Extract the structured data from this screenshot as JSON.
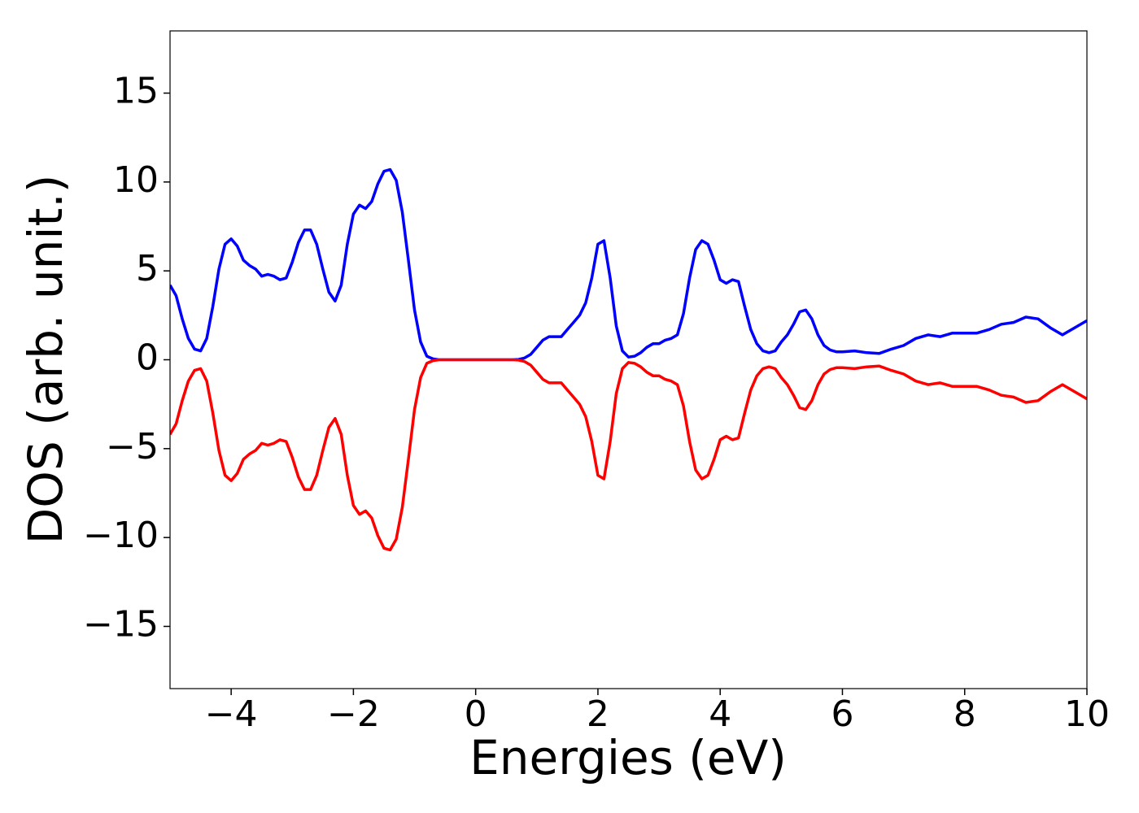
{
  "chart_data": {
    "type": "line",
    "xlabel": "Energies (eV)",
    "ylabel": "DOS (arb. unit.)",
    "x": [
      -5,
      -4.9,
      -4.8,
      -4.7,
      -4.6,
      -4.5,
      -4.4,
      -4.3,
      -4.2,
      -4.1,
      -4,
      -3.9,
      -3.8,
      -3.7,
      -3.6,
      -3.5,
      -3.4,
      -3.3,
      -3.2,
      -3.1,
      -3,
      -2.9,
      -2.8,
      -2.7,
      -2.6,
      -2.5,
      -2.4,
      -2.3,
      -2.2,
      -2.1,
      -2,
      -1.9,
      -1.8,
      -1.7,
      -1.6,
      -1.5,
      -1.4,
      -1.3,
      -1.2,
      -1.1,
      -1,
      -0.9,
      -0.8,
      -0.7,
      -0.6,
      -0.3,
      0,
      0.3,
      0.6,
      0.7,
      0.8,
      0.9,
      1,
      1.1,
      1.2,
      1.3,
      1.4,
      1.5,
      1.6,
      1.7,
      1.8,
      1.9,
      2,
      2.1,
      2.2,
      2.3,
      2.4,
      2.5,
      2.6,
      2.7,
      2.8,
      2.9,
      3,
      3.1,
      3.2,
      3.3,
      3.4,
      3.5,
      3.6,
      3.7,
      3.8,
      3.9,
      4,
      4.1,
      4.2,
      4.3,
      4.4,
      4.5,
      4.6,
      4.7,
      4.8,
      4.9,
      5,
      5.1,
      5.2,
      5.3,
      5.4,
      5.5,
      5.6,
      5.7,
      5.8,
      5.9,
      6,
      6.2,
      6.4,
      6.6,
      6.8,
      7,
      7.2,
      7.4,
      7.6,
      7.8,
      8,
      8.2,
      8.4,
      8.6,
      8.8,
      9,
      9.2,
      9.4,
      9.6,
      9.8,
      10
    ],
    "series": [
      {
        "color": "#0000ff",
        "values": [
          4.2,
          3.6,
          2.3,
          1.2,
          0.6,
          0.5,
          1.2,
          3.0,
          5.1,
          6.5,
          6.8,
          6.4,
          5.6,
          5.3,
          5.1,
          4.7,
          4.8,
          4.7,
          4.5,
          4.6,
          5.5,
          6.6,
          7.3,
          7.3,
          6.5,
          5.1,
          3.8,
          3.3,
          4.2,
          6.5,
          8.2,
          8.7,
          8.5,
          8.9,
          9.9,
          10.6,
          10.7,
          10.1,
          8.3,
          5.6,
          2.8,
          1.0,
          0.2,
          0.05,
          0,
          0,
          0,
          0,
          0,
          0.02,
          0.1,
          0.3,
          0.7,
          1.1,
          1.3,
          1.3,
          1.3,
          1.7,
          2.1,
          2.5,
          3.2,
          4.6,
          6.5,
          6.7,
          4.6,
          1.9,
          0.5,
          0.15,
          0.2,
          0.4,
          0.7,
          0.9,
          0.9,
          1.1,
          1.2,
          1.4,
          2.6,
          4.6,
          6.2,
          6.7,
          6.5,
          5.6,
          4.5,
          4.3,
          4.5,
          4.4,
          3.0,
          1.7,
          0.9,
          0.5,
          0.4,
          0.5,
          1.0,
          1.4,
          2.0,
          2.7,
          2.8,
          2.3,
          1.4,
          0.8,
          0.55,
          0.45,
          0.45,
          0.5,
          0.4,
          0.35,
          0.6,
          0.8,
          1.2,
          1.4,
          1.3,
          1.5,
          1.5,
          1.5,
          1.7,
          2.0,
          2.1,
          2.4,
          2.3,
          1.8,
          1.4,
          1.8,
          2.2
        ]
      },
      {
        "color": "#ff0000",
        "values": [
          -4.2,
          -3.6,
          -2.3,
          -1.2,
          -0.6,
          -0.5,
          -1.2,
          -3.0,
          -5.1,
          -6.5,
          -6.8,
          -6.4,
          -5.6,
          -5.3,
          -5.1,
          -4.7,
          -4.8,
          -4.7,
          -4.5,
          -4.6,
          -5.5,
          -6.6,
          -7.3,
          -7.3,
          -6.5,
          -5.1,
          -3.8,
          -3.3,
          -4.2,
          -6.5,
          -8.2,
          -8.7,
          -8.5,
          -8.9,
          -9.9,
          -10.6,
          -10.7,
          -10.1,
          -8.3,
          -5.6,
          -2.8,
          -1.0,
          -0.2,
          -0.05,
          0,
          0,
          0,
          0,
          0,
          -0.02,
          -0.1,
          -0.3,
          -0.7,
          -1.1,
          -1.3,
          -1.3,
          -1.3,
          -1.7,
          -2.1,
          -2.5,
          -3.2,
          -4.6,
          -6.5,
          -6.7,
          -4.6,
          -1.9,
          -0.5,
          -0.15,
          -0.2,
          -0.4,
          -0.7,
          -0.9,
          -0.9,
          -1.1,
          -1.2,
          -1.4,
          -2.6,
          -4.6,
          -6.2,
          -6.7,
          -6.5,
          -5.6,
          -4.5,
          -4.3,
          -4.5,
          -4.4,
          -3.0,
          -1.7,
          -0.9,
          -0.5,
          -0.4,
          -0.5,
          -1.0,
          -1.4,
          -2.0,
          -2.7,
          -2.8,
          -2.3,
          -1.4,
          -0.8,
          -0.55,
          -0.45,
          -0.45,
          -0.5,
          -0.4,
          -0.35,
          -0.6,
          -0.8,
          -1.2,
          -1.4,
          -1.3,
          -1.5,
          -1.5,
          -1.5,
          -1.7,
          -2.0,
          -2.1,
          -2.4,
          -2.3,
          -1.8,
          -1.4,
          -1.8,
          -2.2
        ]
      }
    ],
    "xlim": [
      -5,
      10
    ],
    "xticks": [
      {
        "value": -4,
        "label": "−4"
      },
      {
        "value": -2,
        "label": "−2"
      },
      0,
      2,
      4,
      6,
      8,
      10
    ],
    "ylim": [
      -18.5,
      18.5
    ],
    "yticks": [
      {
        "value": -15,
        "label": "−15"
      },
      {
        "value": -10,
        "label": "−10"
      },
      {
        "value": -5,
        "label": "−5"
      },
      0,
      5,
      10,
      15
    ],
    "grid": false
  }
}
